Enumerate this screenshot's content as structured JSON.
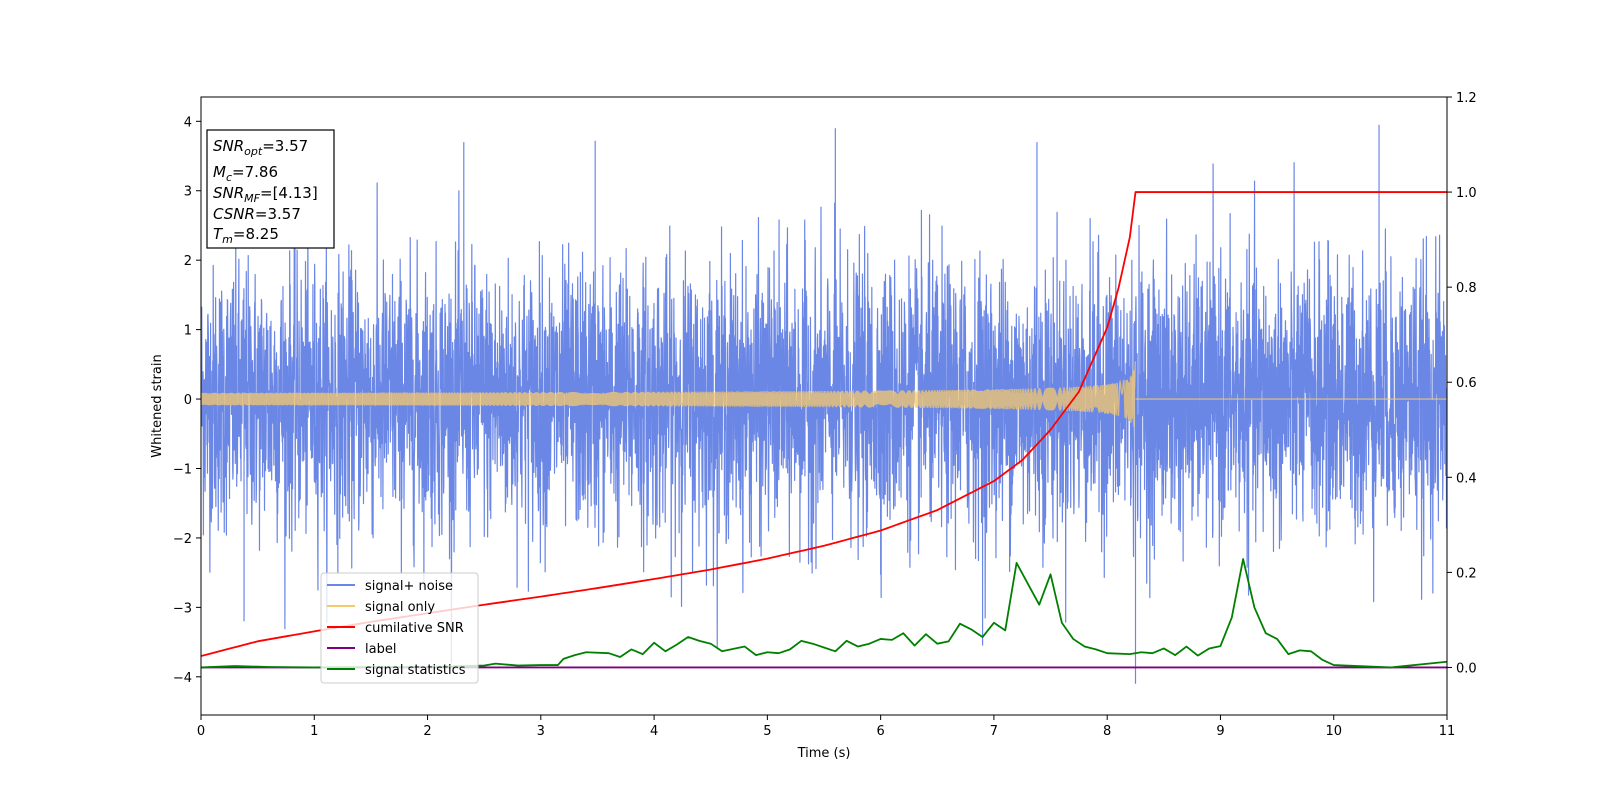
{
  "chart_data": {
    "type": "line",
    "title": "",
    "xlabel": "Time (s)",
    "ylabel": "Whitened strain",
    "xlim": [
      0,
      11
    ],
    "ylim": [
      -4.55,
      4.35
    ],
    "y2lim": [
      -0.1,
      1.2
    ],
    "x_ticks": [
      0,
      1,
      2,
      3,
      4,
      5,
      6,
      7,
      8,
      9,
      10,
      11
    ],
    "y_ticks": [
      4,
      3,
      2,
      1,
      0,
      -1,
      -2,
      -3,
      -4
    ],
    "y_tick_labels": [
      "4",
      "3",
      "2",
      "1",
      "0",
      "−1",
      "−2",
      "−3",
      "−4"
    ],
    "y2_ticks": [
      0.0,
      0.2,
      0.4,
      0.6,
      0.8,
      1.0,
      1.2
    ],
    "y2_tick_labels": [
      "0.0",
      "0.2",
      "0.4",
      "0.6",
      "0.8",
      "1.0",
      "1.2"
    ],
    "legend_position": "lower-left",
    "grid": false,
    "annotation_box": {
      "lines": [
        {
          "symbol": "SNR",
          "sub": "opt",
          "value": "=3.57"
        },
        {
          "symbol": "M",
          "sub": "c",
          "value": "=7.86"
        },
        {
          "symbol": "SNR",
          "sub": "MF",
          "value": "=[4.13]"
        },
        {
          "symbol": "CSNR",
          "sub": "",
          "value": "=3.57"
        },
        {
          "symbol": "T",
          "sub": "m",
          "value": "=8.25"
        }
      ]
    },
    "series": [
      {
        "name": "signal+ noise",
        "axis": "left",
        "color": "#6b87e6",
        "style": "noise",
        "sigma": 1.0,
        "x_range": [
          0,
          11
        ],
        "peak_max": 3.95,
        "peak_min": -4.1,
        "peak_max_x": 10.4,
        "peak_min_x": 8.25
      },
      {
        "name": "signal only",
        "axis": "left",
        "color": "#f5c86e",
        "style": "chirp",
        "merger_time": 8.25,
        "peak_amplitude": 0.55,
        "x_range": [
          0,
          11
        ]
      },
      {
        "name": "cumilative SNR",
        "axis": "right",
        "color": "#ff0000",
        "x": [
          0,
          0.5,
          1.0,
          1.5,
          2.0,
          2.5,
          3.0,
          3.5,
          4.0,
          4.5,
          5.0,
          5.5,
          6.0,
          6.5,
          7.0,
          7.25,
          7.5,
          7.75,
          8.0,
          8.1,
          8.2,
          8.25,
          11
        ],
        "values": [
          0.024,
          0.055,
          0.076,
          0.096,
          0.114,
          0.132,
          0.149,
          0.167,
          0.186,
          0.206,
          0.229,
          0.256,
          0.288,
          0.331,
          0.392,
          0.436,
          0.5,
          0.58,
          0.715,
          0.798,
          0.905,
          1.0,
          1.0
        ]
      },
      {
        "name": "label",
        "axis": "right",
        "color": "#800080",
        "x": [
          0,
          11
        ],
        "values": [
          0.0,
          0.0
        ]
      },
      {
        "name": "signal statistics",
        "axis": "right",
        "color": "#008000",
        "x": [
          0,
          0.3,
          0.6,
          1.0,
          1.5,
          2.0,
          2.5,
          2.6,
          2.8,
          3.0,
          3.15,
          3.2,
          3.3,
          3.4,
          3.6,
          3.7,
          3.8,
          3.9,
          4.0,
          4.1,
          4.2,
          4.3,
          4.4,
          4.5,
          4.6,
          4.8,
          4.9,
          5.0,
          5.1,
          5.2,
          5.3,
          5.4,
          5.5,
          5.6,
          5.7,
          5.8,
          5.9,
          6.0,
          6.1,
          6.2,
          6.3,
          6.4,
          6.5,
          6.6,
          6.7,
          6.8,
          6.9,
          7.0,
          7.1,
          7.2,
          7.3,
          7.4,
          7.5,
          7.6,
          7.7,
          7.8,
          7.9,
          8.0,
          8.2,
          8.3,
          8.4,
          8.5,
          8.6,
          8.7,
          8.8,
          8.9,
          9.0,
          9.1,
          9.2,
          9.3,
          9.4,
          9.5,
          9.6,
          9.7,
          9.8,
          9.9,
          10.0,
          10.5,
          11.0
        ],
        "values": [
          0.0,
          0.003,
          0.001,
          0.0,
          0.001,
          0.001,
          0.004,
          0.008,
          0.004,
          0.005,
          0.005,
          0.018,
          0.026,
          0.032,
          0.03,
          0.022,
          0.038,
          0.028,
          0.052,
          0.034,
          0.048,
          0.064,
          0.056,
          0.05,
          0.034,
          0.044,
          0.026,
          0.032,
          0.03,
          0.038,
          0.056,
          0.05,
          0.042,
          0.034,
          0.056,
          0.044,
          0.05,
          0.06,
          0.058,
          0.072,
          0.046,
          0.07,
          0.05,
          0.055,
          0.092,
          0.08,
          0.064,
          0.094,
          0.078,
          0.22,
          0.176,
          0.132,
          0.196,
          0.094,
          0.06,
          0.044,
          0.038,
          0.03,
          0.028,
          0.032,
          0.03,
          0.04,
          0.026,
          0.044,
          0.025,
          0.04,
          0.045,
          0.105,
          0.228,
          0.126,
          0.072,
          0.06,
          0.028,
          0.036,
          0.034,
          0.016,
          0.005,
          0.0,
          0.012
        ]
      }
    ]
  }
}
